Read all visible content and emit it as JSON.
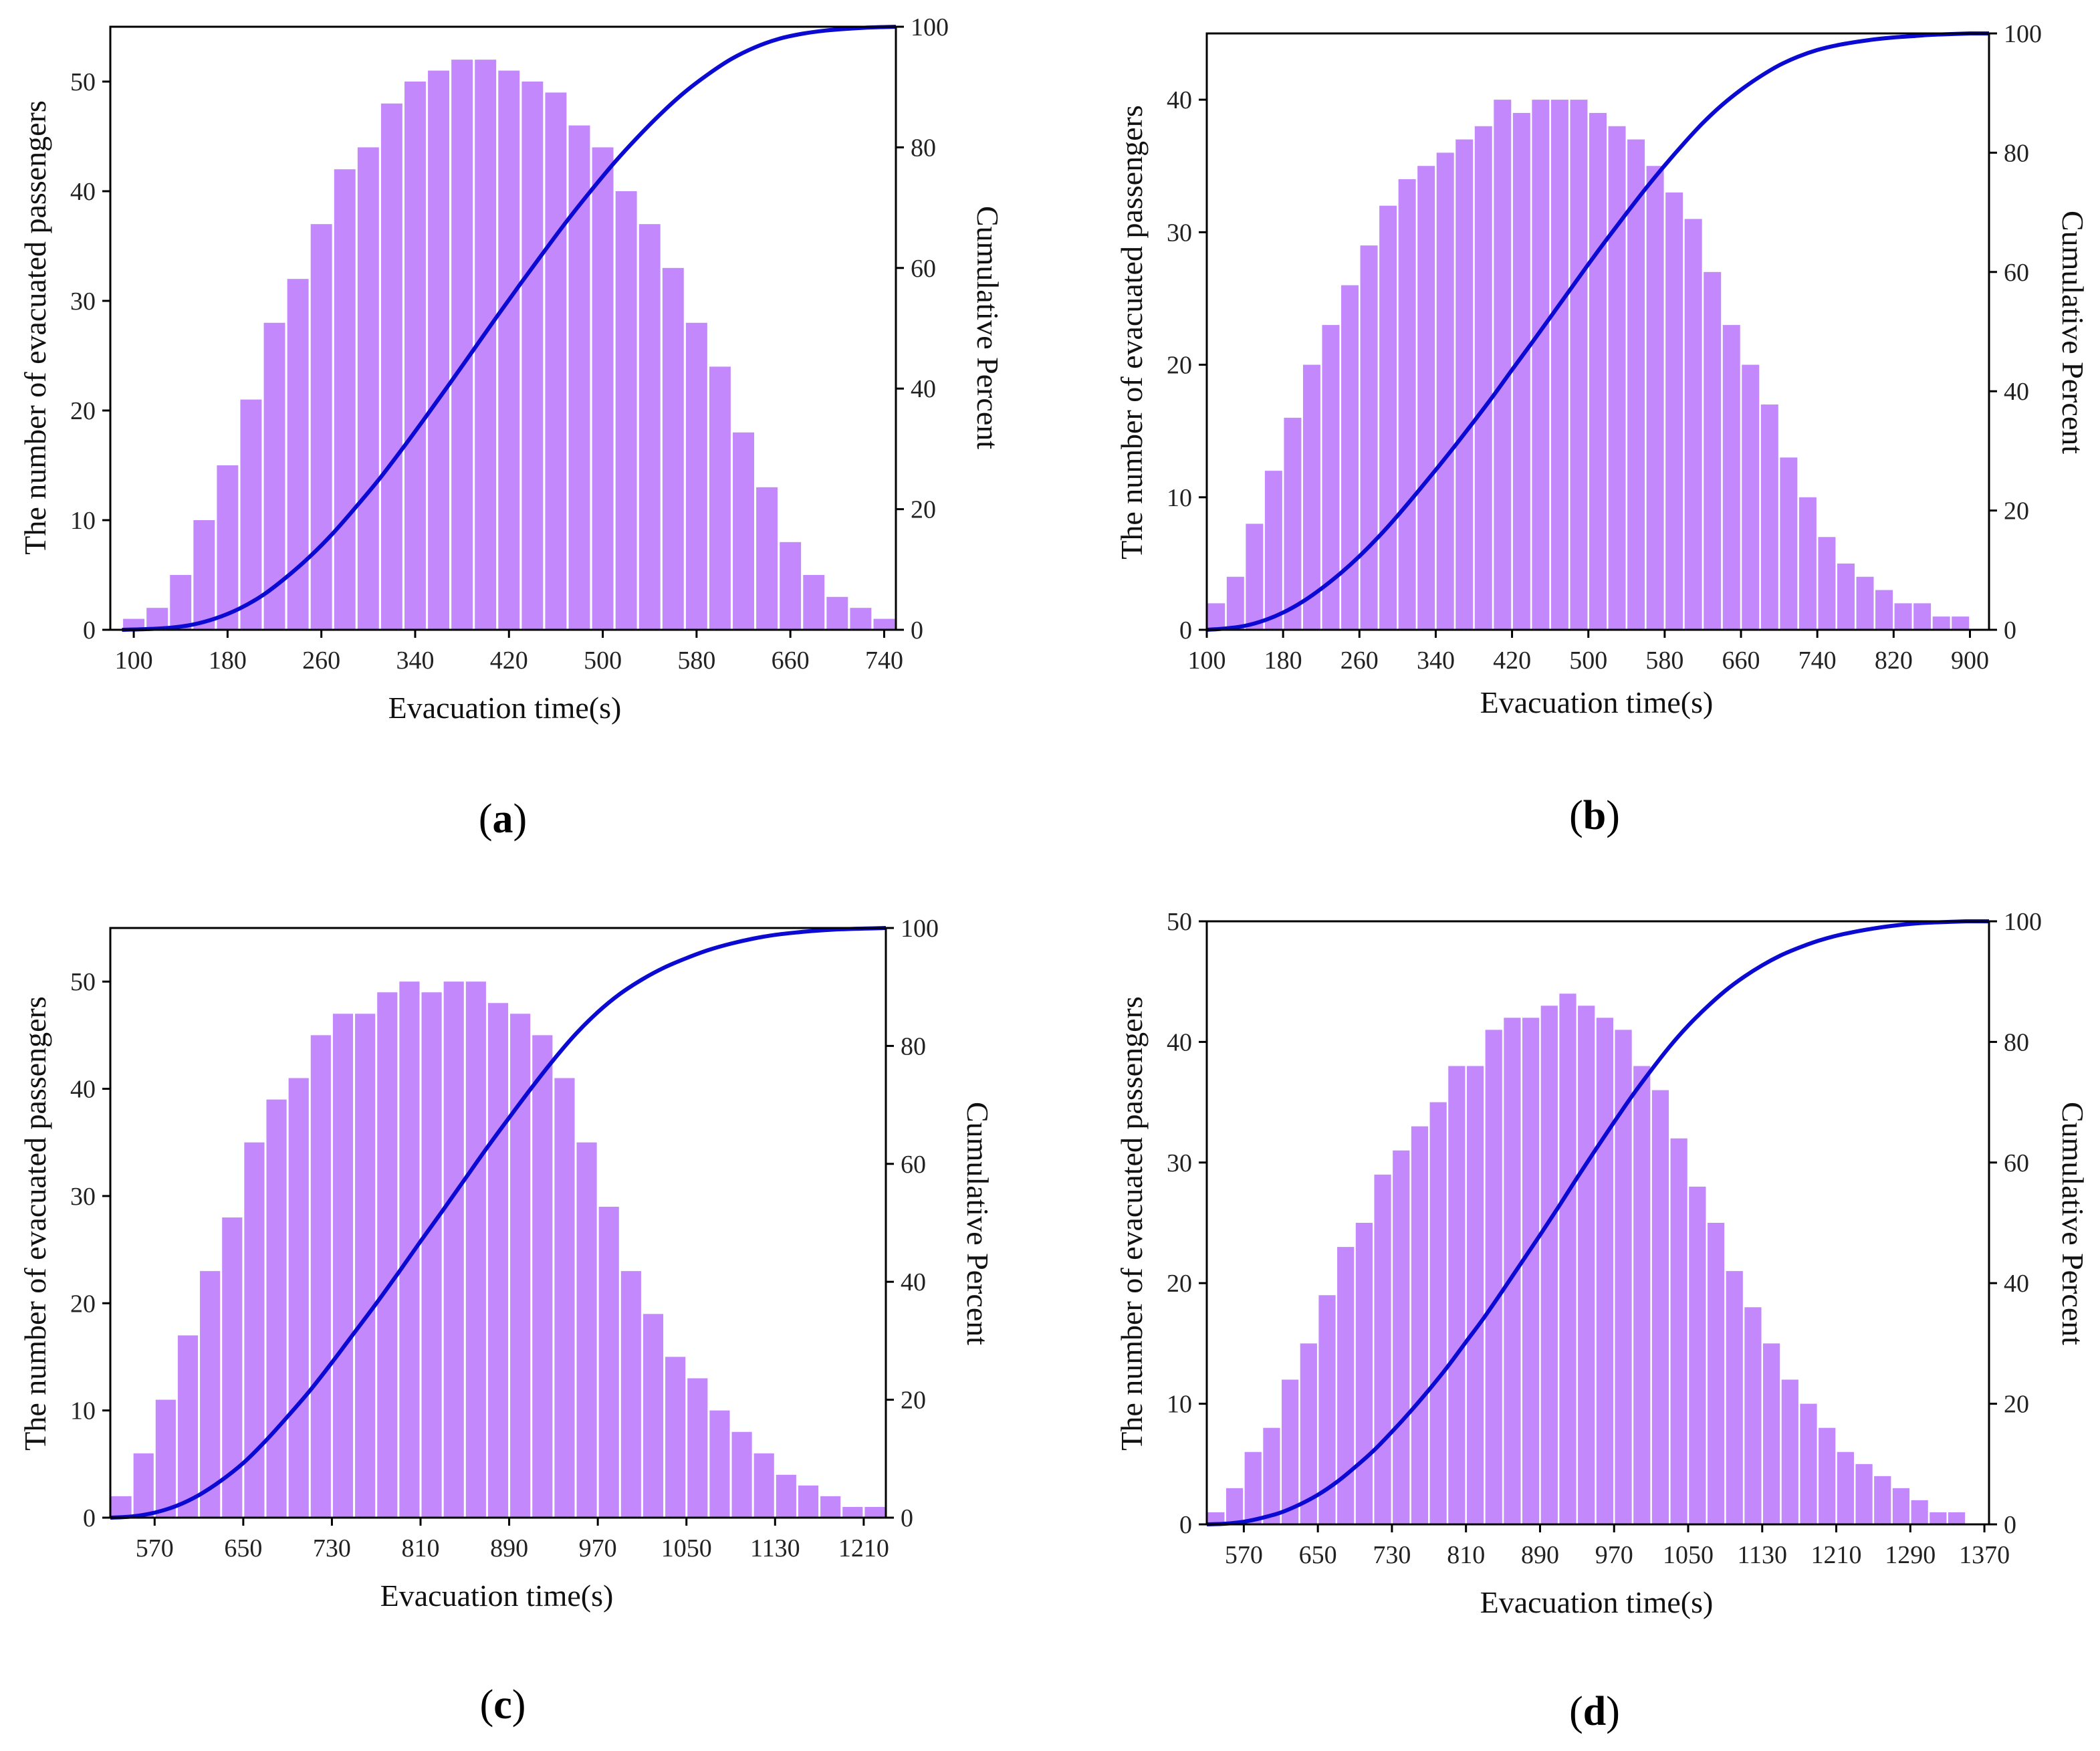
{
  "colors": {
    "bar": "#c388fb",
    "curve": "#0a0ad2",
    "axis": "#000000"
  },
  "chart_data": [
    {
      "type": "bar",
      "panel": "a",
      "xlabel": "Evacuation time(s)",
      "ylabel": "The number of evacuated passengers",
      "y2label": "Cumulative Percent",
      "xlim": [
        80,
        750
      ],
      "xticks": [
        100,
        180,
        260,
        340,
        420,
        500,
        580,
        660,
        740
      ],
      "bin_start": 90,
      "bin_width": 20,
      "ylim": [
        0,
        55
      ],
      "yticks": [
        0,
        10,
        20,
        30,
        40,
        50
      ],
      "y2lim": [
        0,
        100
      ],
      "y2ticks": [
        0,
        20,
        40,
        60,
        80,
        100
      ],
      "values": [
        1,
        2,
        5,
        10,
        15,
        21,
        28,
        32,
        37,
        42,
        44,
        48,
        50,
        51,
        52,
        52,
        51,
        50,
        49,
        46,
        44,
        40,
        37,
        33,
        28,
        24,
        18,
        13,
        8,
        5,
        3,
        2,
        1
      ]
    },
    {
      "type": "bar",
      "panel": "b",
      "xlabel": "Evacuation time(s)",
      "ylabel": "The number of evacuated passengers",
      "y2label": "Cumulative Percent",
      "xlim": [
        100,
        920
      ],
      "xticks": [
        100,
        180,
        260,
        340,
        420,
        500,
        580,
        660,
        740,
        820,
        900
      ],
      "bin_start": 100,
      "bin_width": 20,
      "ylim": [
        0,
        45
      ],
      "yticks": [
        0,
        10,
        20,
        30,
        40
      ],
      "y2lim": [
        0,
        100
      ],
      "y2ticks": [
        0,
        20,
        40,
        60,
        80,
        100
      ],
      "values": [
        2,
        4,
        8,
        12,
        16,
        20,
        23,
        26,
        29,
        32,
        34,
        35,
        36,
        37,
        38,
        40,
        39,
        40,
        40,
        40,
        39,
        38,
        37,
        35,
        33,
        31,
        27,
        23,
        20,
        17,
        13,
        10,
        7,
        5,
        4,
        3,
        2,
        2,
        1,
        1
      ]
    },
    {
      "type": "bar",
      "panel": "c",
      "xlabel": "Evacuation time(s)",
      "ylabel": "The number of evacuated passengers",
      "y2label": "Cumulative Percent",
      "xlim": [
        530,
        1230
      ],
      "xticks": [
        570,
        650,
        730,
        810,
        890,
        970,
        1050,
        1130,
        1210
      ],
      "bin_start": 530,
      "bin_width": 20,
      "ylim": [
        0,
        55
      ],
      "yticks": [
        0,
        10,
        20,
        30,
        40,
        50
      ],
      "y2lim": [
        0,
        100
      ],
      "y2ticks": [
        0,
        20,
        40,
        60,
        80,
        100
      ],
      "values": [
        2,
        6,
        11,
        17,
        23,
        28,
        35,
        39,
        41,
        45,
        47,
        47,
        49,
        50,
        49,
        50,
        50,
        48,
        47,
        45,
        41,
        35,
        29,
        23,
        19,
        15,
        13,
        10,
        8,
        6,
        4,
        3,
        2,
        1,
        1
      ]
    },
    {
      "type": "bar",
      "panel": "d",
      "xlabel": "Evacuation time(s)",
      "ylabel": "The number of evacuated passengers",
      "y2label": "Cumulative Percent",
      "xlim": [
        530,
        1375
      ],
      "xticks": [
        570,
        650,
        730,
        810,
        890,
        970,
        1050,
        1130,
        1210,
        1290,
        1370
      ],
      "bin_start": 530,
      "bin_width": 20,
      "ylim": [
        0,
        50
      ],
      "yticks": [
        0,
        10,
        20,
        30,
        40,
        50
      ],
      "y2lim": [
        0,
        100
      ],
      "y2ticks": [
        0,
        20,
        40,
        60,
        80,
        100
      ],
      "values": [
        1,
        3,
        6,
        8,
        12,
        15,
        19,
        23,
        25,
        29,
        31,
        33,
        35,
        38,
        38,
        41,
        42,
        42,
        43,
        44,
        43,
        42,
        41,
        38,
        36,
        32,
        28,
        25,
        21,
        18,
        15,
        12,
        10,
        8,
        6,
        5,
        4,
        3,
        2,
        1,
        1
      ]
    }
  ]
}
